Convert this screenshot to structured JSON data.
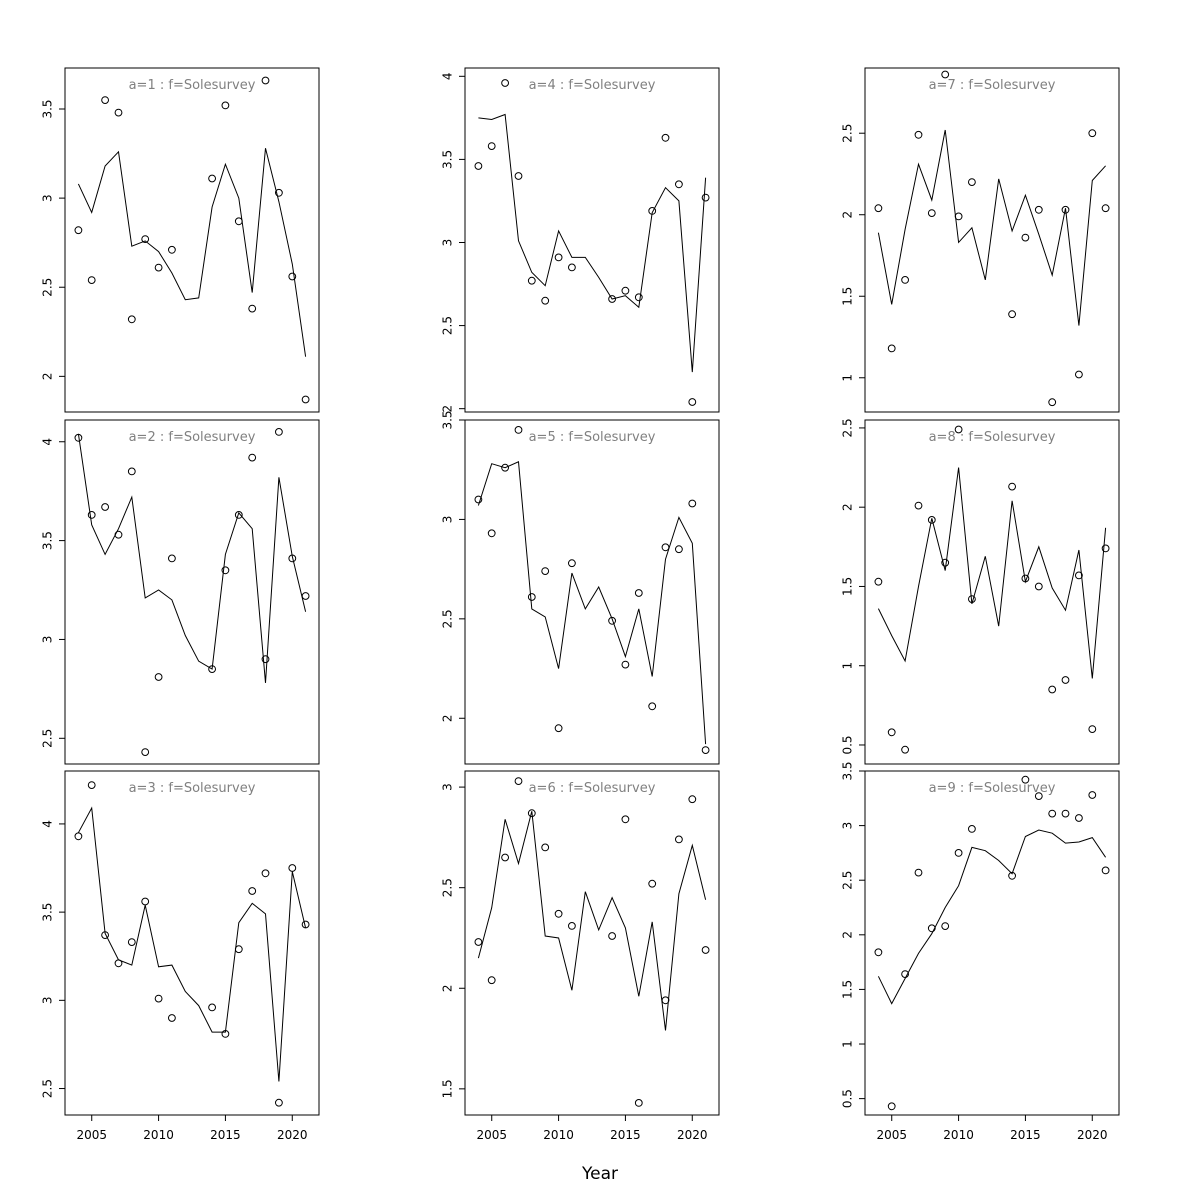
{
  "figure": {
    "xlabel": "Year"
  },
  "chart_data": [
    {
      "type": "scatter+line",
      "title": "a=1 : f=Solesurvey",
      "xlim": [
        2003,
        2022
      ],
      "ylim": [
        1.8,
        3.73
      ],
      "xticks": [
        2005,
        2010,
        2015,
        2020
      ],
      "yticks": [
        2.0,
        2.5,
        3.0,
        3.5
      ],
      "show_xticks": false,
      "observed": {
        "x": [
          2004,
          2005,
          2006,
          2007,
          2008,
          2009,
          2010,
          2011,
          2014,
          2015,
          2016,
          2017,
          2018,
          2019,
          2020,
          2021
        ],
        "y": [
          2.82,
          2.54,
          3.55,
          3.48,
          2.32,
          2.77,
          2.61,
          2.71,
          3.11,
          3.52,
          2.87,
          2.38,
          3.66,
          3.03,
          2.56,
          1.87
        ]
      },
      "fitted": {
        "x": [
          2004,
          2005,
          2006,
          2007,
          2008,
          2009,
          2010,
          2011,
          2012,
          2013,
          2014,
          2015,
          2016,
          2017,
          2018,
          2019,
          2020,
          2021
        ],
        "y": [
          3.08,
          2.92,
          3.18,
          3.26,
          2.73,
          2.76,
          2.7,
          2.58,
          2.43,
          2.44,
          2.95,
          3.19,
          3.0,
          2.47,
          3.28,
          2.98,
          2.63,
          2.11
        ]
      }
    },
    {
      "type": "scatter+line",
      "title": "a=2 : f=Solesurvey",
      "xlim": [
        2003,
        2022
      ],
      "ylim": [
        2.37,
        4.11
      ],
      "xticks": [
        2005,
        2010,
        2015,
        2020
      ],
      "yticks": [
        2.5,
        3.0,
        3.5,
        4.0
      ],
      "show_xticks": false,
      "observed": {
        "x": [
          2004,
          2005,
          2006,
          2007,
          2008,
          2009,
          2010,
          2011,
          2014,
          2015,
          2016,
          2017,
          2018,
          2019,
          2020,
          2021
        ],
        "y": [
          4.02,
          3.63,
          3.67,
          3.53,
          3.85,
          2.43,
          2.81,
          3.41,
          2.85,
          3.35,
          3.63,
          3.92,
          2.9,
          4.05,
          3.41,
          3.22
        ]
      },
      "fitted": {
        "x": [
          2004,
          2005,
          2006,
          2007,
          2008,
          2009,
          2010,
          2011,
          2012,
          2013,
          2014,
          2015,
          2016,
          2017,
          2018,
          2019,
          2020,
          2021
        ],
        "y": [
          4.04,
          3.58,
          3.43,
          3.56,
          3.72,
          3.21,
          3.25,
          3.2,
          3.02,
          2.89,
          2.85,
          3.43,
          3.64,
          3.56,
          2.78,
          3.82,
          3.42,
          3.14
        ]
      }
    },
    {
      "type": "scatter+line",
      "title": "a=3 : f=Solesurvey",
      "xlim": [
        2003,
        2022
      ],
      "ylim": [
        2.35,
        4.3
      ],
      "xticks": [
        2005,
        2010,
        2015,
        2020
      ],
      "yticks": [
        2.5,
        3.0,
        3.5,
        4.0
      ],
      "show_xticks": true,
      "observed": {
        "x": [
          2004,
          2005,
          2006,
          2007,
          2008,
          2009,
          2010,
          2011,
          2014,
          2015,
          2016,
          2017,
          2018,
          2019,
          2020,
          2021
        ],
        "y": [
          3.93,
          4.22,
          3.37,
          3.21,
          3.33,
          3.56,
          3.01,
          2.9,
          2.96,
          2.81,
          3.29,
          3.62,
          3.72,
          2.42,
          3.75,
          3.43
        ]
      },
      "fitted": {
        "x": [
          2004,
          2005,
          2006,
          2007,
          2008,
          2009,
          2010,
          2011,
          2012,
          2013,
          2014,
          2015,
          2016,
          2017,
          2018,
          2019,
          2020,
          2021
        ],
        "y": [
          3.95,
          4.09,
          3.38,
          3.23,
          3.2,
          3.54,
          3.19,
          3.2,
          3.05,
          2.97,
          2.82,
          2.82,
          3.44,
          3.55,
          3.49,
          2.54,
          3.73,
          3.41
        ]
      }
    },
    {
      "type": "scatter+line",
      "title": "a=4 : f=Solesurvey",
      "xlim": [
        2003,
        2022
      ],
      "ylim": [
        1.98,
        4.05
      ],
      "xticks": [
        2005,
        2010,
        2015,
        2020
      ],
      "yticks": [
        2.0,
        2.5,
        3.0,
        3.5,
        4.0
      ],
      "show_xticks": false,
      "observed": {
        "x": [
          2004,
          2005,
          2006,
          2007,
          2008,
          2009,
          2010,
          2011,
          2014,
          2015,
          2016,
          2017,
          2018,
          2019,
          2020,
          2021
        ],
        "y": [
          3.46,
          3.58,
          3.96,
          3.4,
          2.77,
          2.65,
          2.91,
          2.85,
          2.66,
          2.71,
          2.67,
          3.19,
          3.63,
          3.35,
          2.04,
          3.27
        ]
      },
      "fitted": {
        "x": [
          2004,
          2005,
          2006,
          2007,
          2008,
          2009,
          2010,
          2011,
          2012,
          2013,
          2014,
          2015,
          2016,
          2017,
          2018,
          2019,
          2020,
          2021
        ],
        "y": [
          3.75,
          3.74,
          3.77,
          3.01,
          2.82,
          2.74,
          3.07,
          2.91,
          2.91,
          2.79,
          2.66,
          2.68,
          2.61,
          3.18,
          3.33,
          3.25,
          2.22,
          3.39
        ]
      }
    },
    {
      "type": "scatter+line",
      "title": "a=5 : f=Solesurvey",
      "xlim": [
        2003,
        2022
      ],
      "ylim": [
        1.77,
        3.5
      ],
      "xticks": [
        2005,
        2010,
        2015,
        2020
      ],
      "yticks": [
        2.0,
        2.5,
        3.0,
        3.5
      ],
      "show_xticks": false,
      "observed": {
        "x": [
          2004,
          2005,
          2006,
          2007,
          2008,
          2009,
          2010,
          2011,
          2014,
          2015,
          2016,
          2017,
          2018,
          2019,
          2020,
          2021
        ],
        "y": [
          3.1,
          2.93,
          3.26,
          3.45,
          2.61,
          2.74,
          1.95,
          2.78,
          2.49,
          2.27,
          2.63,
          2.06,
          2.86,
          2.85,
          3.08,
          1.84
        ]
      },
      "fitted": {
        "x": [
          2004,
          2005,
          2006,
          2007,
          2008,
          2009,
          2010,
          2011,
          2012,
          2013,
          2014,
          2015,
          2016,
          2017,
          2018,
          2019,
          2020,
          2021
        ],
        "y": [
          3.07,
          3.28,
          3.26,
          3.29,
          2.55,
          2.51,
          2.25,
          2.73,
          2.55,
          2.66,
          2.5,
          2.31,
          2.55,
          2.21,
          2.8,
          3.01,
          2.88,
          1.87
        ]
      }
    },
    {
      "type": "scatter+line",
      "title": "a=6 : f=Solesurvey",
      "xlim": [
        2003,
        2022
      ],
      "ylim": [
        1.37,
        3.08
      ],
      "xticks": [
        2005,
        2010,
        2015,
        2020
      ],
      "yticks": [
        1.5,
        2.0,
        2.5,
        3.0
      ],
      "show_xticks": true,
      "observed": {
        "x": [
          2004,
          2005,
          2006,
          2007,
          2008,
          2009,
          2010,
          2011,
          2014,
          2015,
          2016,
          2017,
          2018,
          2019,
          2020,
          2021
        ],
        "y": [
          2.23,
          2.04,
          2.65,
          3.03,
          2.87,
          2.7,
          2.37,
          2.31,
          2.26,
          2.84,
          1.43,
          2.52,
          1.94,
          2.74,
          2.94,
          2.19
        ]
      },
      "fitted": {
        "x": [
          2004,
          2005,
          2006,
          2007,
          2008,
          2009,
          2010,
          2011,
          2012,
          2013,
          2014,
          2015,
          2016,
          2017,
          2018,
          2019,
          2020,
          2021
        ],
        "y": [
          2.15,
          2.4,
          2.84,
          2.62,
          2.88,
          2.26,
          2.25,
          1.99,
          2.48,
          2.29,
          2.45,
          2.3,
          1.96,
          2.33,
          1.79,
          2.47,
          2.71,
          2.44
        ]
      }
    },
    {
      "type": "scatter+line",
      "title": "a=7 : f=Solesurvey",
      "xlim": [
        2003,
        2022
      ],
      "ylim": [
        0.79,
        2.9
      ],
      "xticks": [
        2005,
        2010,
        2015,
        2020
      ],
      "yticks": [
        1.0,
        1.5,
        2.0,
        2.5
      ],
      "show_xticks": false,
      "observed": {
        "x": [
          2004,
          2005,
          2006,
          2007,
          2008,
          2009,
          2010,
          2011,
          2014,
          2015,
          2016,
          2017,
          2018,
          2019,
          2020,
          2021
        ],
        "y": [
          2.04,
          1.18,
          1.6,
          2.49,
          2.01,
          2.86,
          1.99,
          2.2,
          1.39,
          1.86,
          2.03,
          0.85,
          2.03,
          1.02,
          2.5,
          2.04
        ]
      },
      "fitted": {
        "x": [
          2004,
          2005,
          2006,
          2007,
          2008,
          2009,
          2010,
          2011,
          2012,
          2013,
          2014,
          2015,
          2016,
          2017,
          2018,
          2019,
          2020,
          2021
        ],
        "y": [
          1.89,
          1.45,
          1.91,
          2.31,
          2.09,
          2.52,
          1.83,
          1.92,
          1.6,
          2.22,
          1.9,
          2.12,
          1.88,
          1.63,
          2.04,
          1.32,
          2.21,
          2.3
        ]
      }
    },
    {
      "type": "scatter+line",
      "title": "a=8 : f=Solesurvey",
      "xlim": [
        2003,
        2022
      ],
      "ylim": [
        0.38,
        2.55
      ],
      "xticks": [
        2005,
        2010,
        2015,
        2020
      ],
      "yticks": [
        0.5,
        1.0,
        1.5,
        2.0,
        2.5
      ],
      "show_xticks": false,
      "observed": {
        "x": [
          2004,
          2005,
          2006,
          2007,
          2008,
          2009,
          2010,
          2011,
          2014,
          2015,
          2016,
          2017,
          2018,
          2019,
          2020,
          2021
        ],
        "y": [
          1.53,
          0.58,
          0.47,
          2.01,
          1.92,
          1.65,
          2.49,
          1.42,
          2.13,
          1.55,
          1.5,
          0.85,
          0.91,
          1.57,
          0.6,
          1.74
        ]
      },
      "fitted": {
        "x": [
          2004,
          2005,
          2006,
          2007,
          2008,
          2009,
          2010,
          2011,
          2012,
          2013,
          2014,
          2015,
          2016,
          2017,
          2018,
          2019,
          2020,
          2021
        ],
        "y": [
          1.36,
          1.19,
          1.03,
          1.5,
          1.93,
          1.6,
          2.25,
          1.39,
          1.69,
          1.25,
          2.04,
          1.53,
          1.75,
          1.49,
          1.35,
          1.73,
          0.92,
          1.87
        ]
      }
    },
    {
      "type": "scatter+line",
      "title": "a=9 : f=Solesurvey",
      "xlim": [
        2003,
        2022
      ],
      "ylim": [
        0.35,
        3.5
      ],
      "xticks": [
        2005,
        2010,
        2015,
        2020
      ],
      "yticks": [
        0.5,
        1.0,
        1.5,
        2.0,
        2.5,
        3.0,
        3.5
      ],
      "show_xticks": true,
      "observed": {
        "x": [
          2004,
          2005,
          2006,
          2007,
          2008,
          2009,
          2010,
          2011,
          2014,
          2015,
          2016,
          2017,
          2018,
          2019,
          2020,
          2021
        ],
        "y": [
          1.84,
          0.43,
          1.64,
          2.57,
          2.06,
          2.08,
          2.75,
          2.97,
          2.54,
          3.42,
          3.27,
          3.11,
          3.11,
          3.07,
          3.28,
          2.59
        ]
      },
      "fitted": {
        "x": [
          2004,
          2005,
          2006,
          2007,
          2008,
          2009,
          2010,
          2011,
          2012,
          2013,
          2014,
          2015,
          2016,
          2017,
          2018,
          2019,
          2020,
          2021
        ],
        "y": [
          1.62,
          1.37,
          1.6,
          1.83,
          2.01,
          2.25,
          2.45,
          2.8,
          2.77,
          2.68,
          2.56,
          2.9,
          2.96,
          2.93,
          2.84,
          2.85,
          2.89,
          2.71
        ]
      }
    }
  ]
}
